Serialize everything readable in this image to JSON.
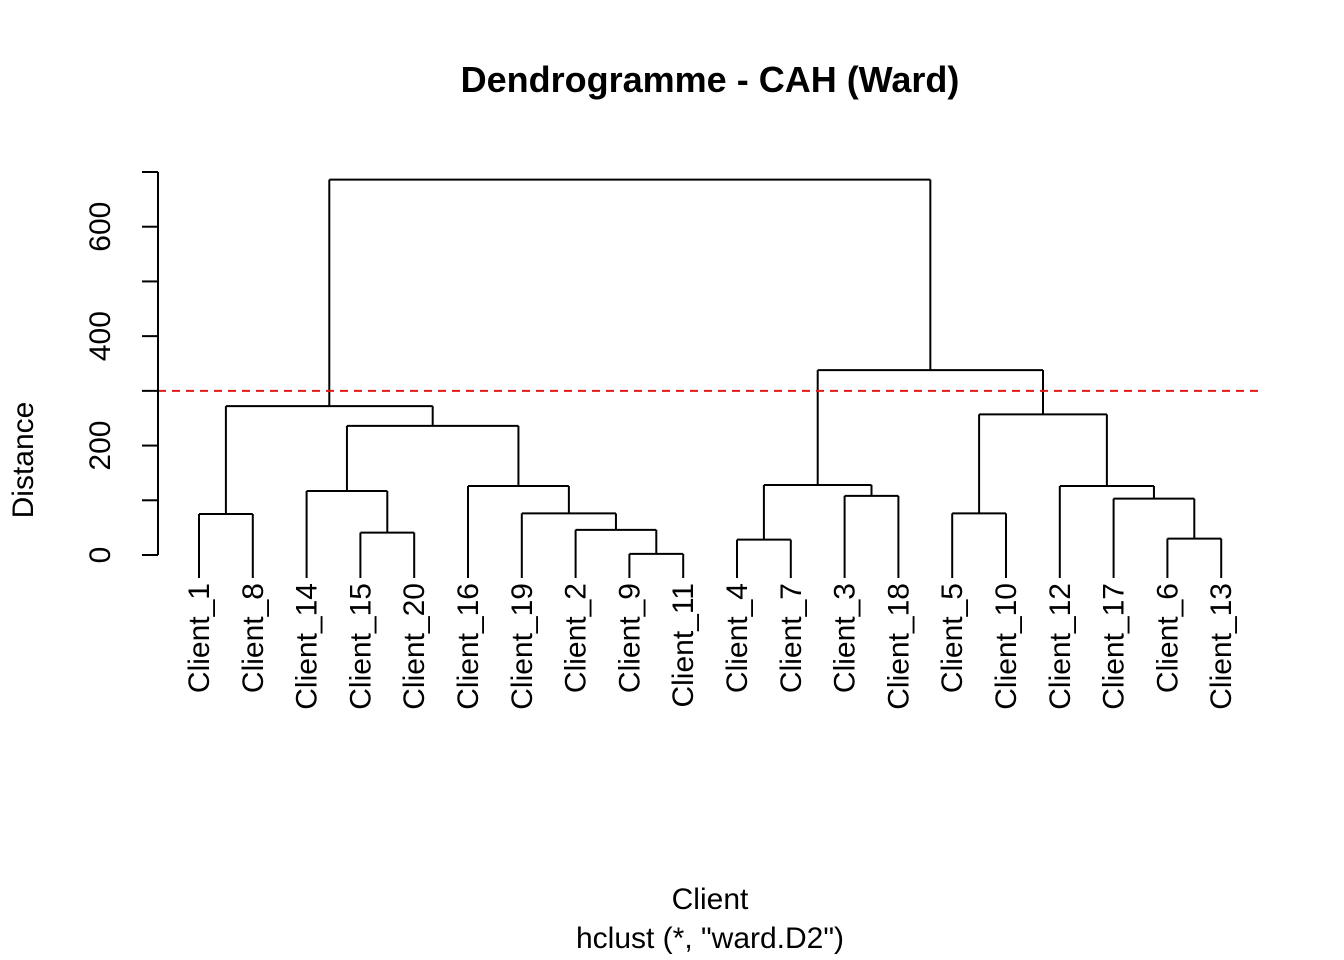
{
  "chart_data": {
    "type": "dendrogram",
    "title": "Dendrogramme - CAH (Ward)",
    "xlabel": "Client",
    "subtitle": "hclust (*, \"ward.D2\")",
    "ylabel": "Distance",
    "ylim": [
      0,
      700
    ],
    "yticks": [
      0,
      200,
      400,
      600
    ],
    "yminor_ticks": [
      100,
      300,
      500,
      700
    ],
    "cut_height": 300,
    "cut_color": "#e31a1c",
    "line_color": "#000000",
    "leaves": [
      "Client_1",
      "Client_8",
      "Client_14",
      "Client_15",
      "Client_20",
      "Client_16",
      "Client_19",
      "Client_2",
      "Client_9",
      "Client_11",
      "Client_4",
      "Client_7",
      "Client_3",
      "Client_18",
      "Client_5",
      "Client_10",
      "Client_12",
      "Client_17",
      "Client_6",
      "Client_13"
    ],
    "merges": [
      {
        "left": "Client_9",
        "right": "Client_11",
        "height": 2
      },
      {
        "left": "Client_4",
        "right": "Client_7",
        "height": 28
      },
      {
        "left": "Client_6",
        "right": "Client_13",
        "height": 30
      },
      {
        "left": "Client_15",
        "right": "Client_20",
        "height": 41
      },
      {
        "left": "Client_2",
        "right": "m1",
        "height": 46
      },
      {
        "left": "Client_1",
        "right": "Client_8",
        "height": 75
      },
      {
        "left": "Client_5",
        "right": "Client_10",
        "height": 76
      },
      {
        "left": "Client_19",
        "right": "m5",
        "height": 76
      },
      {
        "left": "Client_17",
        "right": "m3",
        "height": 103
      },
      {
        "left": "Client_3",
        "right": "Client_18",
        "height": 108
      },
      {
        "left": "Client_14",
        "right": "m4",
        "height": 117
      },
      {
        "left": "Client_16",
        "right": "m8",
        "height": 126
      },
      {
        "left": "Client_12",
        "right": "m9",
        "height": 126
      },
      {
        "left": "m2",
        "right": "m10",
        "height": 128
      },
      {
        "left": "m11",
        "right": "m12",
        "height": 236
      },
      {
        "left": "m7",
        "right": "m13",
        "height": 257
      },
      {
        "left": "m6",
        "right": "m15",
        "height": 272
      },
      {
        "left": "m14",
        "right": "m16",
        "height": 338
      },
      {
        "left": "m17",
        "right": "m18",
        "height": 686
      }
    ]
  }
}
